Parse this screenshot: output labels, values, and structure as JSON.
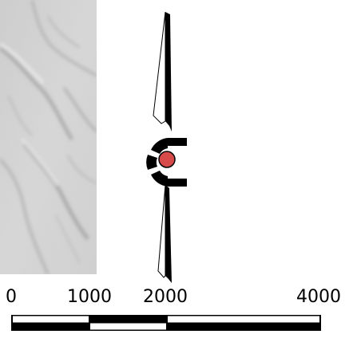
{
  "map": {
    "relief_panel": "hillshade",
    "background_color": "#ffffff"
  },
  "north_arrow": {
    "style": "split-needle",
    "center_color": "#d64a4a",
    "ring_color": "#000000"
  },
  "scale_bar": {
    "labels": [
      "0",
      "1000",
      "2000",
      "4000"
    ],
    "segment_colors": [
      "#ffffff",
      "#000000",
      "#ffffff",
      "#000000"
    ]
  }
}
